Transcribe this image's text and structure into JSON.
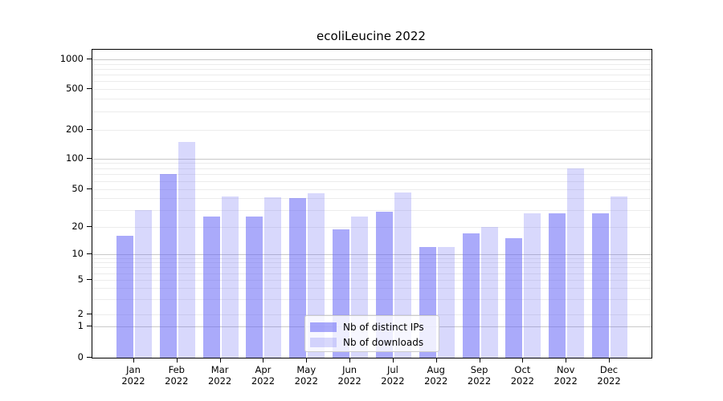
{
  "chart_data": {
    "type": "bar",
    "title": "ecoliLeucine 2022",
    "categories": [
      "Jan 2022",
      "Feb 2022",
      "Mar 2022",
      "Apr 2022",
      "May 2022",
      "Jun 2022",
      "Jul 2022",
      "Aug 2022",
      "Sep 2022",
      "Oct 2022",
      "Nov 2022",
      "Dec 2022"
    ],
    "series": [
      {
        "name": "Nb of distinct IPs",
        "color": "#6464F5",
        "alpha": 0.55,
        "values": [
          16,
          70,
          26,
          26,
          40,
          19,
          29,
          12,
          17,
          15,
          28,
          28
        ]
      },
      {
        "name": "Nb of downloads",
        "color": "#6464F5",
        "alpha": 0.25,
        "values": [
          30,
          150,
          42,
          41,
          45,
          26,
          46,
          12,
          20,
          28,
          80,
          42
        ]
      }
    ],
    "yscale": "symlog",
    "y_ticks": [
      0,
      1,
      2,
      5,
      10,
      20,
      50,
      100,
      200,
      500,
      1000
    ],
    "ylim": [
      0,
      1400
    ],
    "grid": "on",
    "legend_position": "lower center"
  }
}
